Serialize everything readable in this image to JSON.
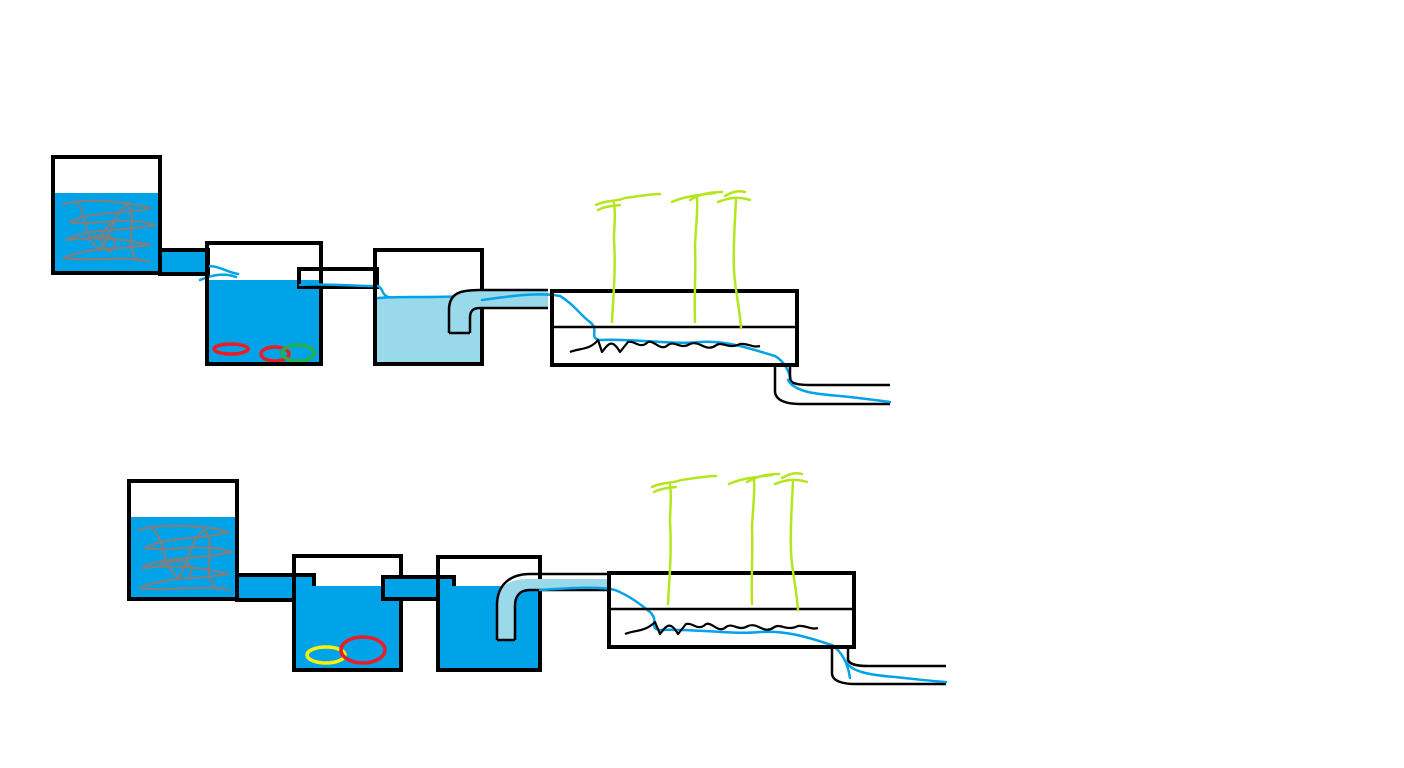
{
  "colors": {
    "water_blue": "#00a2e8",
    "light_water": "#99d9ea",
    "outline": "#000000",
    "debris_gray": "#7f7f7f",
    "plant_green": "#b5e61d",
    "ring_red": "#ed1c24",
    "ring_green": "#22b14c",
    "ring_yellow": "#fff200",
    "gravel_black": "#000000"
  },
  "systems": [
    {
      "id": "top",
      "second_tank_fill": "light",
      "rings": [
        "red",
        "red",
        "green"
      ]
    },
    {
      "id": "bottom",
      "second_tank_fill": "blue",
      "rings": [
        "yellow",
        "red"
      ]
    }
  ]
}
